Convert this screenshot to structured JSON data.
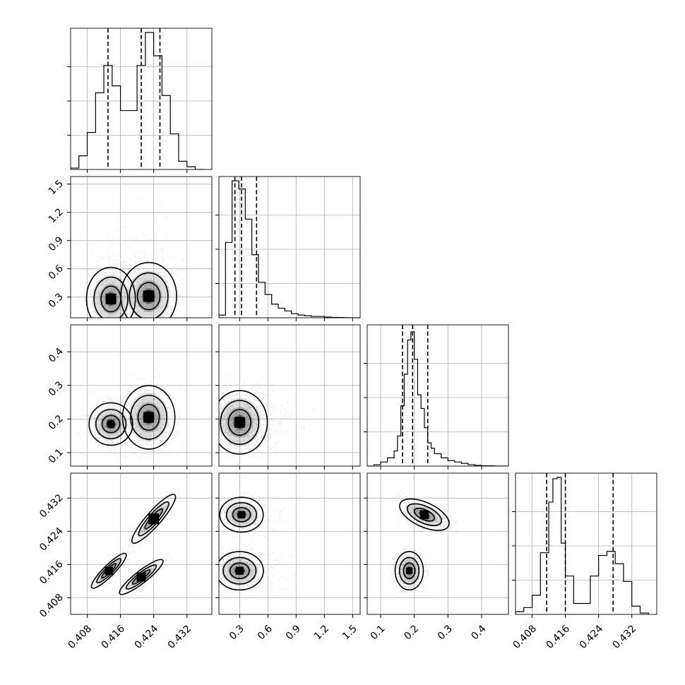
{
  "chart_data": {
    "type": "corner",
    "grid": true,
    "parameters": [
      {
        "range": [
          0.404,
          0.438
        ],
        "ticks": [
          "0.408",
          "0.416",
          "0.424",
          "0.432"
        ],
        "tick_values": [
          0.408,
          0.416,
          0.424,
          0.432
        ]
      },
      {
        "range": [
          0.08,
          1.58
        ],
        "ticks": [
          "0.3",
          "0.6",
          "0.9",
          "1.2",
          "1.5"
        ],
        "tick_values": [
          0.3,
          0.6,
          0.9,
          1.2,
          1.5
        ]
      },
      {
        "range": [
          0.06,
          0.48
        ],
        "ticks": [
          "0.1",
          "0.2",
          "0.3",
          "0.4"
        ],
        "tick_values": [
          0.1,
          0.2,
          0.3,
          0.4
        ]
      },
      {
        "range": [
          0.404,
          0.438
        ],
        "ticks": [
          "0.408",
          "0.416",
          "0.424",
          "0.432"
        ],
        "tick_values": [
          0.408,
          0.416,
          0.424,
          0.432
        ]
      }
    ],
    "histograms": [
      {
        "quantiles": [
          0.413,
          0.421,
          0.4255
        ],
        "bins": [
          0.404,
          0.406,
          0.408,
          0.41,
          0.412,
          0.414,
          0.416,
          0.418,
          0.42,
          0.422,
          0.424,
          0.426,
          0.428,
          0.43,
          0.432,
          0.434,
          0.436
        ],
        "counts": [
          0.01,
          0.1,
          0.27,
          0.56,
          0.76,
          0.61,
          0.43,
          0.43,
          0.76,
          1.0,
          0.83,
          0.54,
          0.26,
          0.06,
          0.02,
          0.0
        ]
      },
      {
        "quantiles": [
          0.25,
          0.32,
          0.48
        ],
        "bins": [
          0.08,
          0.15,
          0.22,
          0.29,
          0.36,
          0.43,
          0.5,
          0.57,
          0.64,
          0.71,
          0.78,
          0.85,
          0.92,
          0.99,
          1.06,
          1.13,
          1.2,
          1.27,
          1.34,
          1.41,
          1.48,
          1.58
        ],
        "counts": [
          0.02,
          0.55,
          1.0,
          0.94,
          0.72,
          0.46,
          0.26,
          0.17,
          0.1,
          0.07,
          0.05,
          0.03,
          0.02,
          0.015,
          0.01,
          0.01,
          0.005,
          0.003,
          0.002,
          0.001,
          0.0
        ]
      },
      {
        "quantiles": [
          0.165,
          0.195,
          0.24
        ],
        "bins": [
          0.06,
          0.08,
          0.1,
          0.12,
          0.14,
          0.15,
          0.16,
          0.17,
          0.18,
          0.19,
          0.2,
          0.21,
          0.22,
          0.23,
          0.24,
          0.25,
          0.26,
          0.28,
          0.3,
          0.32,
          0.34,
          0.36,
          0.38,
          0.4,
          0.44,
          0.48
        ],
        "counts": [
          0.0,
          0.01,
          0.03,
          0.06,
          0.11,
          0.22,
          0.44,
          0.67,
          0.92,
          0.98,
          0.78,
          0.52,
          0.42,
          0.28,
          0.17,
          0.13,
          0.09,
          0.06,
          0.04,
          0.03,
          0.02,
          0.01,
          0.005,
          0.002,
          0.0
        ]
      },
      {
        "quantiles": [
          0.4115,
          0.416,
          0.4275
        ],
        "bins": [
          0.404,
          0.406,
          0.408,
          0.41,
          0.412,
          0.413,
          0.414,
          0.415,
          0.416,
          0.418,
          0.42,
          0.422,
          0.424,
          0.426,
          0.428,
          0.43,
          0.432,
          0.434,
          0.436
        ],
        "counts": [
          0.02,
          0.05,
          0.14,
          0.45,
          0.82,
          0.99,
          1.0,
          0.52,
          0.28,
          0.08,
          0.08,
          0.28,
          0.43,
          0.46,
          0.37,
          0.24,
          0.06,
          0.01
        ]
      }
    ],
    "joint": [
      {
        "row": 1,
        "col": 0,
        "modes": [
          {
            "x": 0.4137,
            "y": 0.28,
            "sx": 0.0028,
            "sy": 0.16,
            "w": 0.47
          },
          {
            "x": 0.4228,
            "y": 0.31,
            "sx": 0.0032,
            "sy": 0.17,
            "w": 0.53
          }
        ]
      },
      {
        "row": 2,
        "col": 0,
        "modes": [
          {
            "x": 0.4137,
            "y": 0.185,
            "sx": 0.0025,
            "sy": 0.03,
            "w": 0.47
          },
          {
            "x": 0.4228,
            "y": 0.205,
            "sx": 0.003,
            "sy": 0.045,
            "w": 0.53
          }
        ]
      },
      {
        "row": 2,
        "col": 1,
        "modes": [
          {
            "x": 0.3,
            "y": 0.19,
            "sx": 0.14,
            "sy": 0.045,
            "w": 1.0
          }
        ]
      },
      {
        "row": 3,
        "col": 0,
        "modes": [
          {
            "x": 0.4132,
            "y": 0.4145,
            "sx": 0.002,
            "sy": 0.002,
            "w": 0.47,
            "rho": 0.9
          },
          {
            "x": 0.424,
            "y": 0.427,
            "sx": 0.0025,
            "sy": 0.0028,
            "w": 0.3,
            "rho": 0.9
          },
          {
            "x": 0.421,
            "y": 0.413,
            "sx": 0.0025,
            "sy": 0.002,
            "w": 0.23,
            "rho": 0.9
          }
        ]
      },
      {
        "row": 3,
        "col": 1,
        "modes": [
          {
            "x": 0.32,
            "y": 0.428,
            "sx": 0.11,
            "sy": 0.002,
            "w": 0.4
          },
          {
            "x": 0.3,
            "y": 0.4145,
            "sx": 0.12,
            "sy": 0.0022,
            "w": 0.6
          }
        ]
      },
      {
        "row": 3,
        "col": 2,
        "modes": [
          {
            "x": 0.23,
            "y": 0.428,
            "sx": 0.035,
            "sy": 0.0018,
            "w": 0.4,
            "rho": -0.55
          },
          {
            "x": 0.185,
            "y": 0.4145,
            "sx": 0.02,
            "sy": 0.0022,
            "w": 0.6
          }
        ]
      }
    ]
  }
}
